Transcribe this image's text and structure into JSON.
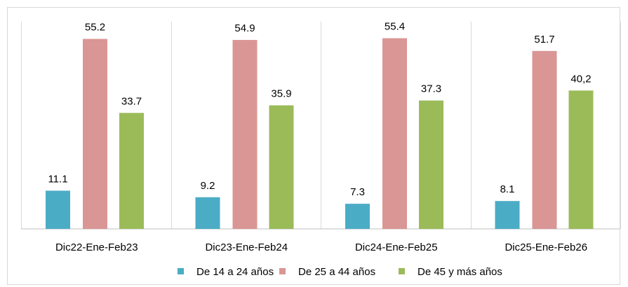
{
  "chart_data": {
    "type": "bar",
    "categories": [
      "Dic22-Ene-Feb23",
      "Dic23-Ene-Feb24",
      "Dic24-Ene-Feb25",
      "Dic25-Ene-Feb26"
    ],
    "series": [
      {
        "name": "De 14 a 24 años",
        "color": "#4bacc6",
        "values": [
          11.1,
          9.2,
          7.3,
          8.1
        ],
        "labels": [
          "11.1",
          "9.2",
          "7.3",
          "8.1"
        ]
      },
      {
        "name": "De 25 a 44 años",
        "color": "#d99694",
        "values": [
          55.2,
          54.9,
          55.4,
          51.7
        ],
        "labels": [
          "55.2",
          "54.9",
          "55.4",
          "51.7"
        ]
      },
      {
        "name": "De 45 y más años",
        "color": "#9bbb59",
        "values": [
          33.7,
          35.9,
          37.3,
          40.2
        ],
        "labels": [
          "33.7",
          "35.9",
          "37.3",
          "40,2"
        ]
      }
    ],
    "ylim": [
      0,
      60
    ],
    "grid": false,
    "legend_position": "bottom"
  }
}
